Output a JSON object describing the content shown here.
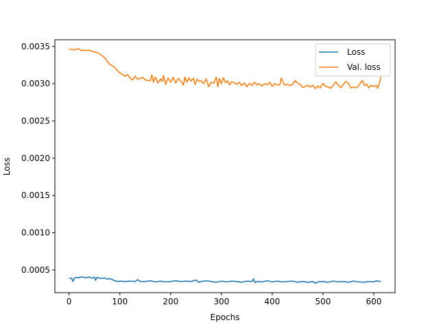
{
  "chart_data": {
    "type": "line",
    "title": "",
    "xlabel": "Epochs",
    "ylabel": "Loss",
    "xlim": [
      -28,
      642
    ],
    "ylim": [
      0.000195,
      0.00359
    ],
    "xticks": [
      0,
      100,
      200,
      300,
      400,
      500,
      600
    ],
    "xtick_labels": [
      "0",
      "100",
      "200",
      "300",
      "400",
      "500",
      "600"
    ],
    "yticks": [
      0.0005,
      0.001,
      0.0015,
      0.002,
      0.0025,
      0.003,
      0.0035
    ],
    "ytick_labels": [
      "0.0005",
      "0.0010",
      "0.0015",
      "0.0020",
      "0.0025",
      "0.0030",
      "0.0035"
    ],
    "grid": false,
    "legend_position": "top-right",
    "series": [
      {
        "name": "Loss",
        "color": "#1f77b4",
        "points": [
          [
            0,
            0.00039
          ],
          [
            5,
            0.000385
          ],
          [
            8,
            0.000345
          ],
          [
            10,
            0.00039
          ],
          [
            15,
            0.0004
          ],
          [
            20,
            0.000395
          ],
          [
            25,
            0.00041
          ],
          [
            30,
            0.000395
          ],
          [
            35,
            0.0004
          ],
          [
            40,
            0.000405
          ],
          [
            45,
            0.00039
          ],
          [
            50,
            0.000405
          ],
          [
            52,
            0.00036
          ],
          [
            55,
            0.0004
          ],
          [
            60,
            0.00039
          ],
          [
            65,
            0.000385
          ],
          [
            70,
            0.000395
          ],
          [
            75,
            0.000375
          ],
          [
            80,
            0.000385
          ],
          [
            85,
            0.00037
          ],
          [
            90,
            0.000355
          ],
          [
            95,
            0.000345
          ],
          [
            100,
            0.00035
          ],
          [
            110,
            0.000345
          ],
          [
            120,
            0.00035
          ],
          [
            130,
            0.000345
          ],
          [
            135,
            0.00037
          ],
          [
            140,
            0.000345
          ],
          [
            150,
            0.000345
          ],
          [
            160,
            0.000355
          ],
          [
            170,
            0.00034
          ],
          [
            180,
            0.00035
          ],
          [
            190,
            0.00034
          ],
          [
            200,
            0.000345
          ],
          [
            210,
            0.000355
          ],
          [
            220,
            0.000345
          ],
          [
            230,
            0.00035
          ],
          [
            240,
            0.000345
          ],
          [
            250,
            0.000365
          ],
          [
            255,
            0.000335
          ],
          [
            260,
            0.000345
          ],
          [
            270,
            0.000355
          ],
          [
            280,
            0.000345
          ],
          [
            290,
            0.000335
          ],
          [
            300,
            0.00035
          ],
          [
            310,
            0.00034
          ],
          [
            320,
            0.00035
          ],
          [
            330,
            0.000345
          ],
          [
            340,
            0.000335
          ],
          [
            350,
            0.00035
          ],
          [
            360,
            0.000345
          ],
          [
            363,
            0.00038
          ],
          [
            366,
            0.00033
          ],
          [
            370,
            0.000345
          ],
          [
            380,
            0.00034
          ],
          [
            390,
            0.000355
          ],
          [
            400,
            0.00034
          ],
          [
            410,
            0.00035
          ],
          [
            420,
            0.00034
          ],
          [
            430,
            0.000345
          ],
          [
            440,
            0.00035
          ],
          [
            450,
            0.000335
          ],
          [
            460,
            0.000345
          ],
          [
            470,
            0.000335
          ],
          [
            480,
            0.000345
          ],
          [
            485,
            0.00032
          ],
          [
            490,
            0.00034
          ],
          [
            500,
            0.000345
          ],
          [
            510,
            0.000335
          ],
          [
            520,
            0.00035
          ],
          [
            530,
            0.00034
          ],
          [
            540,
            0.000345
          ],
          [
            550,
            0.000335
          ],
          [
            560,
            0.00035
          ],
          [
            570,
            0.00034
          ],
          [
            580,
            0.000335
          ],
          [
            590,
            0.000345
          ],
          [
            600,
            0.00034
          ],
          [
            605,
            0.000355
          ],
          [
            610,
            0.000345
          ],
          [
            614,
            0.00035
          ]
        ]
      },
      {
        "name": "Val. loss",
        "color": "#ff7f0e",
        "points": [
          [
            0,
            0.003465
          ],
          [
            5,
            0.00346
          ],
          [
            10,
            0.003455
          ],
          [
            15,
            0.003465
          ],
          [
            18,
            0.00347
          ],
          [
            22,
            0.003455
          ],
          [
            25,
            0.003445
          ],
          [
            30,
            0.00345
          ],
          [
            35,
            0.003445
          ],
          [
            40,
            0.00345
          ],
          [
            45,
            0.003435
          ],
          [
            48,
            0.00343
          ],
          [
            50,
            0.003425
          ],
          [
            55,
            0.00342
          ],
          [
            60,
            0.0034
          ],
          [
            65,
            0.003375
          ],
          [
            70,
            0.00335
          ],
          [
            75,
            0.003305
          ],
          [
            80,
            0.00326
          ],
          [
            85,
            0.00324
          ],
          [
            90,
            0.00322
          ],
          [
            95,
            0.003175
          ],
          [
            100,
            0.003145
          ],
          [
            105,
            0.003125
          ],
          [
            110,
            0.0031
          ],
          [
            115,
            0.00312
          ],
          [
            120,
            0.00308
          ],
          [
            125,
            0.00305
          ],
          [
            130,
            0.0031
          ],
          [
            135,
            0.00306
          ],
          [
            140,
            0.00307
          ],
          [
            145,
            0.003085
          ],
          [
            150,
            0.00305
          ],
          [
            155,
            0.003045
          ],
          [
            160,
            0.00304
          ],
          [
            163,
            0.00312
          ],
          [
            166,
            0.00302
          ],
          [
            170,
            0.00309
          ],
          [
            175,
            0.00301
          ],
          [
            180,
            0.003065
          ],
          [
            183,
            0.00303
          ],
          [
            186,
            0.00311
          ],
          [
            190,
            0.00299
          ],
          [
            195,
            0.003075
          ],
          [
            200,
            0.00302
          ],
          [
            205,
            0.003085
          ],
          [
            210,
            0.00301
          ],
          [
            215,
            0.00307
          ],
          [
            220,
            0.003035
          ],
          [
            225,
            0.00298
          ],
          [
            228,
            0.00309
          ],
          [
            232,
            0.00302
          ],
          [
            236,
            0.00308
          ],
          [
            240,
            0.003035
          ],
          [
            245,
            0.003075
          ],
          [
            248,
            0.00299
          ],
          [
            252,
            0.00306
          ],
          [
            256,
            0.00303
          ],
          [
            260,
            0.00304
          ],
          [
            265,
            0.003
          ],
          [
            270,
            0.003065
          ],
          [
            275,
            0.00296
          ],
          [
            280,
            0.00302
          ],
          [
            285,
            0.003005
          ],
          [
            290,
            0.00309
          ],
          [
            293,
            0.00296
          ],
          [
            296,
            0.00307
          ],
          [
            300,
            0.003
          ],
          [
            304,
            0.00308
          ],
          [
            308,
            0.003015
          ],
          [
            312,
            0.00304
          ],
          [
            316,
            0.002985
          ],
          [
            320,
            0.003025
          ],
          [
            325,
            0.003015
          ],
          [
            330,
            0.00299
          ],
          [
            335,
            0.00302
          ],
          [
            340,
            0.002975
          ],
          [
            345,
            0.00301
          ],
          [
            350,
            0.00296
          ],
          [
            355,
            0.003005
          ],
          [
            360,
            0.002975
          ],
          [
            365,
            0.00302
          ],
          [
            370,
            0.002985
          ],
          [
            375,
            0.003
          ],
          [
            380,
            0.00297
          ],
          [
            385,
            0.003
          ],
          [
            390,
            0.002985
          ],
          [
            395,
            0.00302
          ],
          [
            400,
            0.002965
          ],
          [
            405,
            0.003
          ],
          [
            410,
            0.002985
          ],
          [
            415,
            0.002985
          ],
          [
            418,
            0.003075
          ],
          [
            422,
            0.00301
          ],
          [
            425,
            0.00298
          ],
          [
            430,
            0.002995
          ],
          [
            435,
            0.002975
          ],
          [
            440,
            0.00299
          ],
          [
            445,
            0.00304
          ],
          [
            450,
            0.00301
          ],
          [
            455,
            0.00299
          ],
          [
            460,
            0.00295
          ],
          [
            465,
            0.00296
          ],
          [
            470,
            0.00298
          ],
          [
            475,
            0.002955
          ],
          [
            480,
            0.00298
          ],
          [
            485,
            0.002935
          ],
          [
            490,
            0.00297
          ],
          [
            495,
            0.002945
          ],
          [
            500,
            0.003005
          ],
          [
            505,
            0.002965
          ],
          [
            510,
            0.002955
          ],
          [
            515,
            0.00294
          ],
          [
            520,
            0.002975
          ],
          [
            525,
            0.003025
          ],
          [
            530,
            0.002985
          ],
          [
            535,
            0.002945
          ],
          [
            540,
            0.00299
          ],
          [
            545,
            0.00303
          ],
          [
            550,
            0.003005
          ],
          [
            555,
            0.002945
          ],
          [
            560,
            0.002955
          ],
          [
            565,
            0.002945
          ],
          [
            570,
            0.00297
          ],
          [
            575,
            0.003025
          ],
          [
            578,
            0.00304
          ],
          [
            582,
            0.002975
          ],
          [
            586,
            0.002995
          ],
          [
            590,
            0.002945
          ],
          [
            595,
            0.00298
          ],
          [
            600,
            0.00296
          ],
          [
            605,
            0.002975
          ],
          [
            608,
            0.00294
          ],
          [
            612,
            0.00303
          ],
          [
            614,
            0.00309
          ]
        ]
      }
    ]
  }
}
